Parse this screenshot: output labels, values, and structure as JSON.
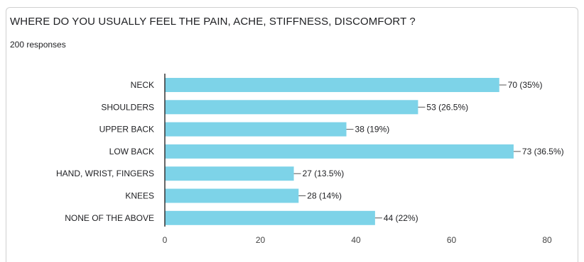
{
  "header": {
    "title": "WHERE DO YOU USUALLY FEEL THE PAIN, ACHE, STIFFNESS, DISCOMFORT ?",
    "responses": "200 responses"
  },
  "colors": {
    "bar": "#7dd3e8",
    "axis": "#333333",
    "leader": "#555555"
  },
  "chart_data": {
    "type": "bar",
    "orientation": "horizontal",
    "title": "WHERE DO YOU USUALLY FEEL THE PAIN, ACHE, STIFFNESS, DISCOMFORT ?",
    "categories": [
      "NECK",
      "SHOULDERS",
      "UPPER BACK",
      "LOW BACK",
      "HAND, WRIST, FINGERS",
      "KNEES",
      "NONE OF THE ABOVE"
    ],
    "values": [
      70,
      53,
      38,
      73,
      27,
      28,
      44
    ],
    "data_labels": [
      "70 (35%)",
      "53 (26.5%)",
      "38 (19%)",
      "73 (36.5%)",
      "27 (13.5%)",
      "28 (14%)",
      "44 (22%)"
    ],
    "xticks": [
      "0",
      "20",
      "40",
      "60",
      "80"
    ],
    "xlim": [
      0,
      80
    ],
    "xlabel": "",
    "ylabel": "",
    "grid": false,
    "legend": "none"
  }
}
